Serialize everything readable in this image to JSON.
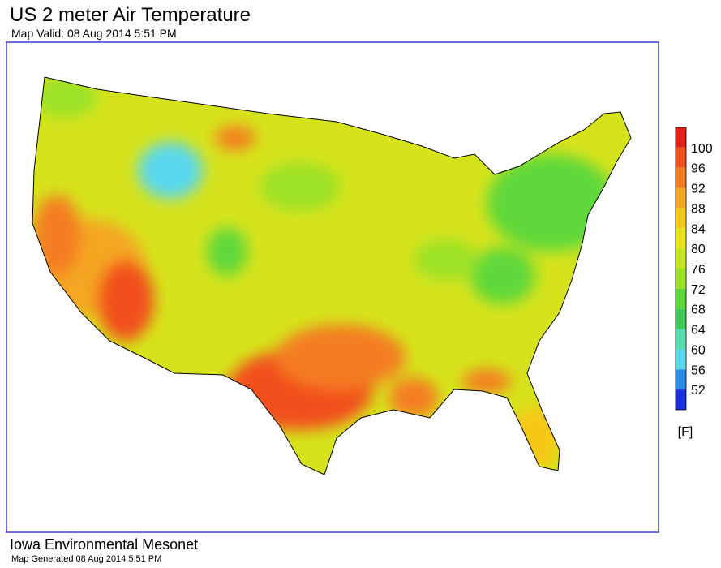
{
  "header": {
    "title": "US 2 meter Air Temperature",
    "subtitle": "Map Valid: 08 Aug 2014 5:51 PM"
  },
  "legend": {
    "levels": [
      100,
      96,
      92,
      88,
      84,
      80,
      76,
      72,
      68,
      64,
      60,
      56,
      52
    ],
    "colors": [
      "#e8211c",
      "#f2501c",
      "#f47d20",
      "#f5a623",
      "#f6c818",
      "#e7e51a",
      "#c6e51f",
      "#9ce227",
      "#5fd83a",
      "#3ecb5a",
      "#55dcb0",
      "#5ad8ee",
      "#2a8ee8",
      "#1a2fe0"
    ],
    "unit": "[F]"
  },
  "footer": {
    "organization": "Iowa Environmental Mesonet",
    "generated": "Map Generated 08 Aug 2014 5:51 PM"
  }
}
